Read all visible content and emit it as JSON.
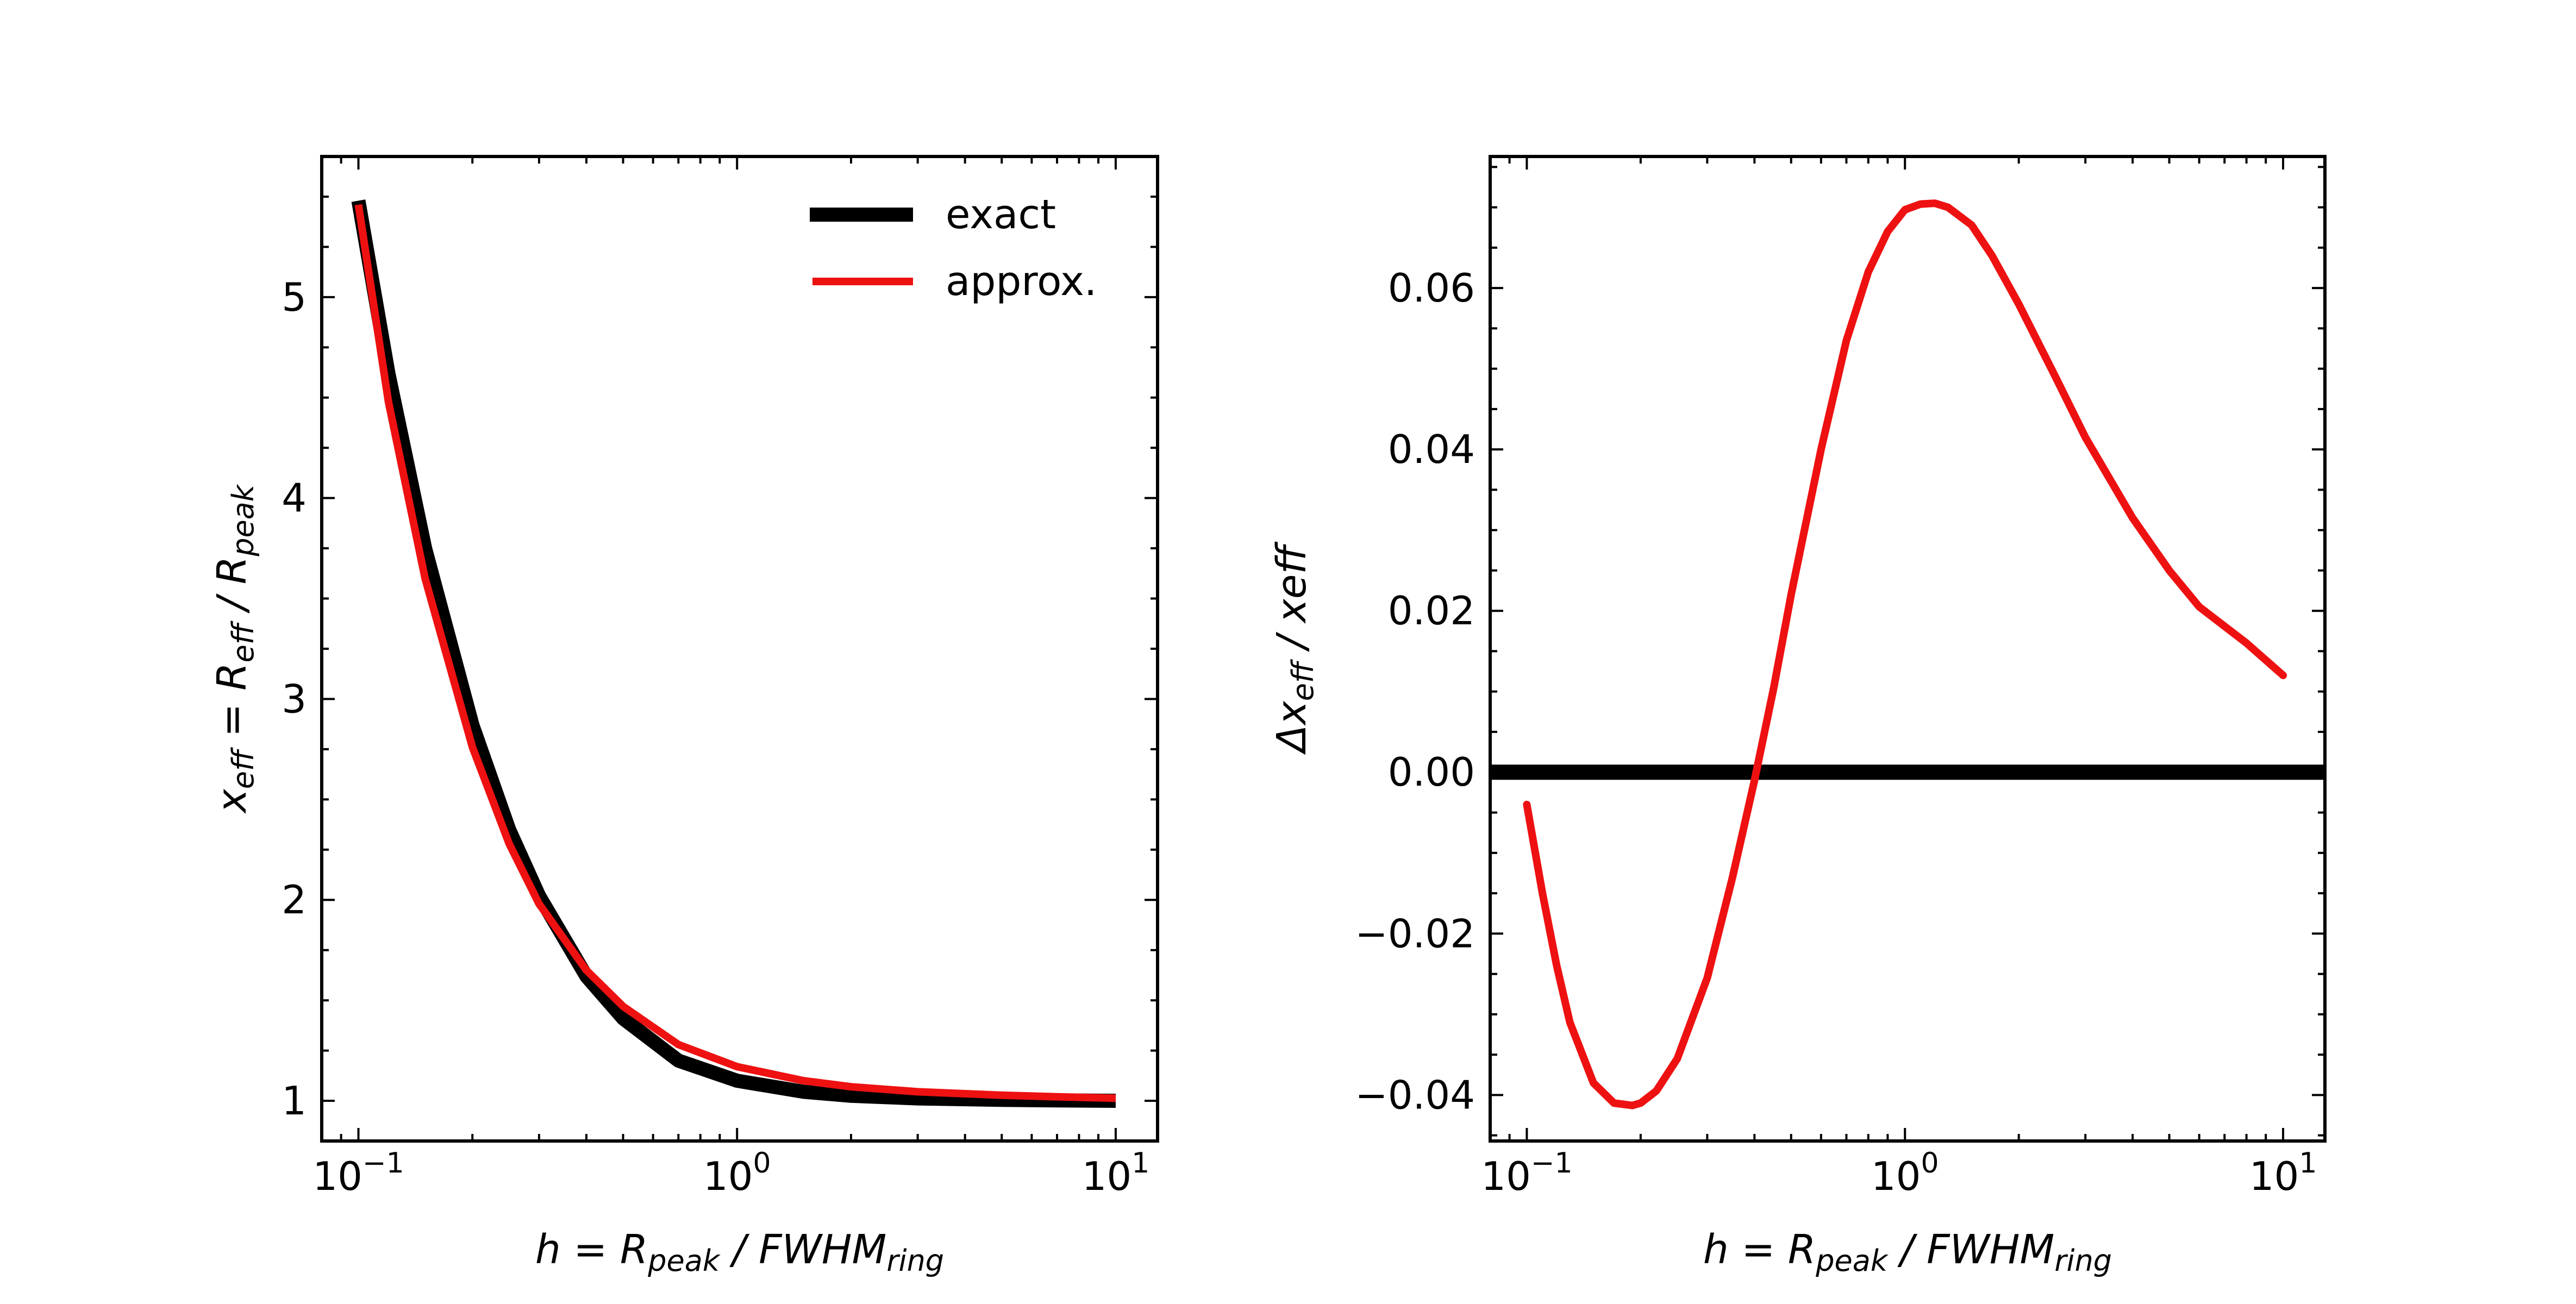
{
  "chart_data": [
    {
      "type": "line",
      "xscale": "log",
      "xlim": [
        0.08,
        12.9
      ],
      "ylim": [
        0.8,
        5.7
      ],
      "xticks": [
        {
          "value": 0.1,
          "base": "10",
          "exp": "−1"
        },
        {
          "value": 1,
          "base": "10",
          "exp": "0"
        },
        {
          "value": 10,
          "base": "10",
          "exp": "1"
        }
      ],
      "yticks": [
        {
          "value": 1,
          "label": "1"
        },
        {
          "value": 2,
          "label": "2"
        },
        {
          "value": 3,
          "label": "3"
        },
        {
          "value": 4,
          "label": "4"
        },
        {
          "value": 5,
          "label": "5"
        }
      ],
      "xlabel": {
        "pre": "h = R",
        "sub1": "peak",
        "mid": " / FWHM",
        "sub2": "ring"
      },
      "ylabel": {
        "pre": "x",
        "sub1": "eff",
        "mid": " = R",
        "sub2": "eff",
        "mid2": " / R",
        "sub3": "peak"
      },
      "legend": {
        "position": "top-right",
        "entries": [
          "exact",
          "approx."
        ]
      },
      "series": [
        {
          "name": "exact",
          "color": "#000000",
          "x": [
            0.1,
            0.12,
            0.15,
            0.2,
            0.25,
            0.3,
            0.4,
            0.5,
            0.7,
            1.0,
            1.5,
            2.0,
            3.0,
            5.0,
            7.0,
            10.0
          ],
          "y": [
            5.48,
            4.62,
            3.75,
            2.87,
            2.35,
            2.02,
            1.62,
            1.41,
            1.2,
            1.1,
            1.045,
            1.025,
            1.012,
            1.005,
            1.002,
            1.0
          ]
        },
        {
          "name": "approx.",
          "color": "#ee1111",
          "x": [
            0.1,
            0.12,
            0.15,
            0.2,
            0.25,
            0.3,
            0.4,
            0.5,
            0.7,
            1.0,
            1.5,
            2.0,
            3.0,
            5.0,
            7.0,
            10.0
          ],
          "y": [
            5.46,
            4.48,
            3.6,
            2.76,
            2.28,
            1.98,
            1.65,
            1.47,
            1.28,
            1.17,
            1.1,
            1.07,
            1.045,
            1.028,
            1.02,
            1.013
          ]
        }
      ]
    },
    {
      "type": "line",
      "xscale": "log",
      "xlim": [
        0.08,
        12.9
      ],
      "ylim": [
        -0.0457,
        0.0763
      ],
      "xticks": [
        {
          "value": 0.1,
          "base": "10",
          "exp": "−1"
        },
        {
          "value": 1,
          "base": "10",
          "exp": "0"
        },
        {
          "value": 10,
          "base": "10",
          "exp": "1"
        }
      ],
      "yticks": [
        {
          "value": -0.04,
          "label": "−0.04"
        },
        {
          "value": -0.02,
          "label": "−0.02"
        },
        {
          "value": 0.0,
          "label": "0.00"
        },
        {
          "value": 0.02,
          "label": "0.02"
        },
        {
          "value": 0.04,
          "label": "0.04"
        },
        {
          "value": 0.06,
          "label": "0.06"
        }
      ],
      "xlabel": {
        "pre": "h = R",
        "sub1": "peak",
        "mid": " / FWHM",
        "sub2": "ring"
      },
      "ylabel": {
        "pre": "Δx",
        "sub1": "eff",
        "mid": " / xeff"
      },
      "series": [
        {
          "name": "zero",
          "color": "#000000",
          "x": [
            0.08,
            12.9
          ],
          "y": [
            0.0,
            0.0
          ]
        },
        {
          "name": "relative difference",
          "color": "#ee1111",
          "x": [
            0.1,
            0.11,
            0.12,
            0.13,
            0.15,
            0.17,
            0.19,
            0.2,
            0.22,
            0.25,
            0.3,
            0.35,
            0.4,
            0.45,
            0.5,
            0.6,
            0.7,
            0.8,
            0.9,
            1.0,
            1.1,
            1.2,
            1.3,
            1.5,
            1.7,
            2.0,
            2.5,
            3.0,
            4.0,
            5.0,
            6.0,
            8.0,
            10.0
          ],
          "y": [
            -0.004,
            -0.015,
            -0.024,
            -0.031,
            -0.0385,
            -0.041,
            -0.0413,
            -0.041,
            -0.0395,
            -0.0355,
            -0.0255,
            -0.013,
            -0.001,
            0.0105,
            0.022,
            0.04,
            0.0535,
            0.062,
            0.067,
            0.0697,
            0.0704,
            0.0705,
            0.07,
            0.0678,
            0.064,
            0.058,
            0.049,
            0.0415,
            0.0315,
            0.025,
            0.0205,
            0.016,
            0.012
          ]
        }
      ]
    }
  ]
}
